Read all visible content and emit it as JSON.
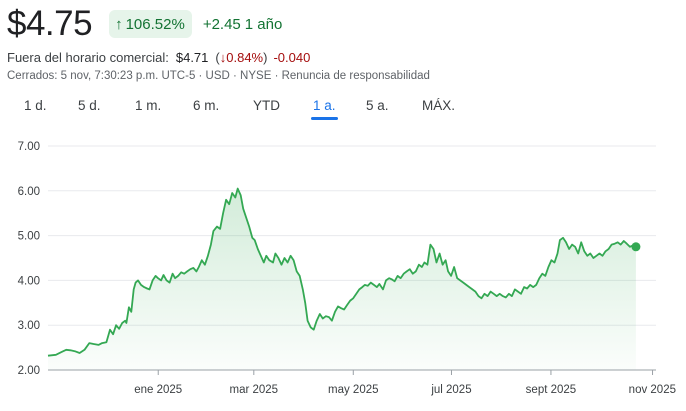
{
  "quote": {
    "price": "$4.75",
    "change_pct": "106.52%",
    "change_abs": "+2.45",
    "change_period": "1 año",
    "after_hours_label": "Fuera del horario comercial:",
    "after_hours_price": "$4.71",
    "after_hours_pct_open": "(",
    "after_hours_pct": "0.84%",
    "after_hours_pct_close": ")",
    "after_hours_abs": "-0.040",
    "meta": "Cerrados: 5 nov, 7:30:23 p.m. UTC-5 · USD · NYSE · Renuncia de responsabilidad"
  },
  "icons": {
    "up": "arrow-up-icon",
    "down": "arrow-down-icon"
  },
  "colors": {
    "positive": "#137333",
    "negative": "#a50e0e",
    "line": "#34a853",
    "accent": "#1a73e8"
  },
  "range_tabs": [
    {
      "label": "1 d.",
      "active": false
    },
    {
      "label": "5 d.",
      "active": false
    },
    {
      "label": "1 m.",
      "active": false
    },
    {
      "label": "6 m.",
      "active": false
    },
    {
      "label": "YTD",
      "active": false
    },
    {
      "label": "1 a.",
      "active": true
    },
    {
      "label": "5 a.",
      "active": false
    },
    {
      "label": "MÁX.",
      "active": false
    }
  ],
  "chart_data": {
    "type": "area",
    "ylim": [
      2.0,
      7.0
    ],
    "y_ticks": [
      "7.00",
      "6.00",
      "5.00",
      "4.00",
      "3.00",
      "2.00"
    ],
    "x_ticks": [
      {
        "label": "ene 2025",
        "x": 0.1813
      },
      {
        "label": "mar 2025",
        "x": 0.3385
      },
      {
        "label": "may 2025",
        "x": 0.5021
      },
      {
        "label": "jul 2025",
        "x": 0.6636
      },
      {
        "label": "sept 2025",
        "x": 0.8272
      },
      {
        "label": "nov 2025",
        "x": 0.9943
      }
    ],
    "grid": true,
    "series": [
      {
        "values": [
          [
            0.0,
            2.32
          ],
          [
            0.013,
            2.34
          ],
          [
            0.022,
            2.4
          ],
          [
            0.03,
            2.45
          ],
          [
            0.037,
            2.44
          ],
          [
            0.044,
            2.42
          ],
          [
            0.052,
            2.38
          ],
          [
            0.06,
            2.45
          ],
          [
            0.068,
            2.6
          ],
          [
            0.075,
            2.58
          ],
          [
            0.083,
            2.56
          ],
          [
            0.089,
            2.6
          ],
          [
            0.096,
            2.62
          ],
          [
            0.102,
            2.9
          ],
          [
            0.107,
            2.8
          ],
          [
            0.112,
            3.0
          ],
          [
            0.117,
            2.92
          ],
          [
            0.122,
            3.05
          ],
          [
            0.127,
            3.1
          ],
          [
            0.129,
            3.05
          ],
          [
            0.133,
            3.4
          ],
          [
            0.137,
            3.3
          ],
          [
            0.141,
            3.8
          ],
          [
            0.144,
            3.95
          ],
          [
            0.148,
            4.0
          ],
          [
            0.153,
            3.9
          ],
          [
            0.158,
            3.85
          ],
          [
            0.163,
            3.82
          ],
          [
            0.167,
            3.8
          ],
          [
            0.172,
            4.0
          ],
          [
            0.177,
            4.1
          ],
          [
            0.181,
            4.05
          ],
          [
            0.186,
            4.0
          ],
          [
            0.19,
            4.12
          ],
          [
            0.195,
            4.0
          ],
          [
            0.2,
            3.95
          ],
          [
            0.205,
            4.15
          ],
          [
            0.209,
            4.05
          ],
          [
            0.214,
            4.1
          ],
          [
            0.219,
            4.18
          ],
          [
            0.224,
            4.15
          ],
          [
            0.229,
            4.2
          ],
          [
            0.234,
            4.25
          ],
          [
            0.239,
            4.28
          ],
          [
            0.244,
            4.2
          ],
          [
            0.248,
            4.3
          ],
          [
            0.253,
            4.45
          ],
          [
            0.258,
            4.35
          ],
          [
            0.263,
            4.55
          ],
          [
            0.268,
            4.8
          ],
          [
            0.272,
            5.1
          ],
          [
            0.278,
            5.2
          ],
          [
            0.283,
            5.15
          ],
          [
            0.288,
            5.5
          ],
          [
            0.293,
            5.8
          ],
          [
            0.298,
            5.7
          ],
          [
            0.303,
            5.95
          ],
          [
            0.308,
            5.85
          ],
          [
            0.312,
            6.05
          ],
          [
            0.317,
            5.9
          ],
          [
            0.321,
            5.6
          ],
          [
            0.326,
            5.4
          ],
          [
            0.331,
            5.2
          ],
          [
            0.336,
            4.95
          ],
          [
            0.34,
            4.9
          ],
          [
            0.345,
            4.7
          ],
          [
            0.35,
            4.55
          ],
          [
            0.355,
            4.4
          ],
          [
            0.359,
            4.55
          ],
          [
            0.364,
            4.45
          ],
          [
            0.37,
            4.4
          ],
          [
            0.374,
            4.6
          ],
          [
            0.379,
            4.5
          ],
          [
            0.384,
            4.35
          ],
          [
            0.389,
            4.5
          ],
          [
            0.394,
            4.4
          ],
          [
            0.399,
            4.55
          ],
          [
            0.404,
            4.45
          ],
          [
            0.409,
            4.2
          ],
          [
            0.414,
            4.1
          ],
          [
            0.419,
            3.8
          ],
          [
            0.423,
            3.5
          ],
          [
            0.427,
            3.1
          ],
          [
            0.432,
            2.95
          ],
          [
            0.437,
            2.9
          ],
          [
            0.442,
            3.1
          ],
          [
            0.447,
            3.25
          ],
          [
            0.452,
            3.15
          ],
          [
            0.457,
            3.2
          ],
          [
            0.462,
            3.18
          ],
          [
            0.467,
            3.1
          ],
          [
            0.472,
            3.3
          ],
          [
            0.477,
            3.42
          ],
          [
            0.482,
            3.38
          ],
          [
            0.487,
            3.35
          ],
          [
            0.492,
            3.45
          ],
          [
            0.497,
            3.55
          ],
          [
            0.502,
            3.6
          ],
          [
            0.507,
            3.7
          ],
          [
            0.512,
            3.8
          ],
          [
            0.517,
            3.85
          ],
          [
            0.521,
            3.9
          ],
          [
            0.526,
            3.88
          ],
          [
            0.531,
            3.95
          ],
          [
            0.536,
            3.9
          ],
          [
            0.541,
            3.85
          ],
          [
            0.545,
            3.92
          ],
          [
            0.551,
            3.8
          ],
          [
            0.556,
            4.0
          ],
          [
            0.561,
            4.05
          ],
          [
            0.566,
            4.02
          ],
          [
            0.57,
            3.98
          ],
          [
            0.575,
            4.1
          ],
          [
            0.58,
            4.05
          ],
          [
            0.585,
            4.15
          ],
          [
            0.59,
            4.2
          ],
          [
            0.595,
            4.25
          ],
          [
            0.6,
            4.15
          ],
          [
            0.605,
            4.2
          ],
          [
            0.61,
            4.35
          ],
          [
            0.615,
            4.3
          ],
          [
            0.619,
            4.4
          ],
          [
            0.624,
            4.35
          ],
          [
            0.629,
            4.8
          ],
          [
            0.634,
            4.7
          ],
          [
            0.639,
            4.4
          ],
          [
            0.644,
            4.6
          ],
          [
            0.649,
            4.35
          ],
          [
            0.654,
            4.45
          ],
          [
            0.658,
            4.2
          ],
          [
            0.663,
            4.1
          ],
          [
            0.668,
            4.3
          ],
          [
            0.673,
            4.05
          ],
          [
            0.678,
            4.0
          ],
          [
            0.683,
            3.95
          ],
          [
            0.688,
            3.9
          ],
          [
            0.693,
            3.85
          ],
          [
            0.698,
            3.8
          ],
          [
            0.703,
            3.75
          ],
          [
            0.708,
            3.65
          ],
          [
            0.713,
            3.6
          ],
          [
            0.718,
            3.7
          ],
          [
            0.723,
            3.65
          ],
          [
            0.728,
            3.75
          ],
          [
            0.733,
            3.7
          ],
          [
            0.738,
            3.65
          ],
          [
            0.743,
            3.7
          ],
          [
            0.748,
            3.65
          ],
          [
            0.753,
            3.62
          ],
          [
            0.758,
            3.7
          ],
          [
            0.763,
            3.65
          ],
          [
            0.768,
            3.8
          ],
          [
            0.773,
            3.75
          ],
          [
            0.778,
            3.7
          ],
          [
            0.783,
            3.85
          ],
          [
            0.788,
            3.82
          ],
          [
            0.793,
            3.9
          ],
          [
            0.798,
            3.85
          ],
          [
            0.803,
            3.9
          ],
          [
            0.808,
            4.05
          ],
          [
            0.813,
            4.15
          ],
          [
            0.818,
            4.1
          ],
          [
            0.823,
            4.3
          ],
          [
            0.828,
            4.45
          ],
          [
            0.833,
            4.4
          ],
          [
            0.838,
            4.6
          ],
          [
            0.842,
            4.9
          ],
          [
            0.847,
            4.95
          ],
          [
            0.852,
            4.85
          ],
          [
            0.857,
            4.7
          ],
          [
            0.862,
            4.8
          ],
          [
            0.867,
            4.75
          ],
          [
            0.872,
            4.6
          ],
          [
            0.877,
            4.85
          ],
          [
            0.882,
            4.65
          ],
          [
            0.887,
            4.55
          ],
          [
            0.892,
            4.6
          ],
          [
            0.897,
            4.5
          ],
          [
            0.902,
            4.55
          ],
          [
            0.907,
            4.6
          ],
          [
            0.912,
            4.55
          ],
          [
            0.917,
            4.65
          ],
          [
            0.922,
            4.7
          ],
          [
            0.927,
            4.8
          ],
          [
            0.932,
            4.82
          ],
          [
            0.937,
            4.85
          ],
          [
            0.942,
            4.8
          ],
          [
            0.947,
            4.88
          ],
          [
            0.952,
            4.82
          ],
          [
            0.957,
            4.75
          ],
          [
            0.962,
            4.78
          ],
          [
            0.967,
            4.75
          ]
        ]
      }
    ]
  }
}
